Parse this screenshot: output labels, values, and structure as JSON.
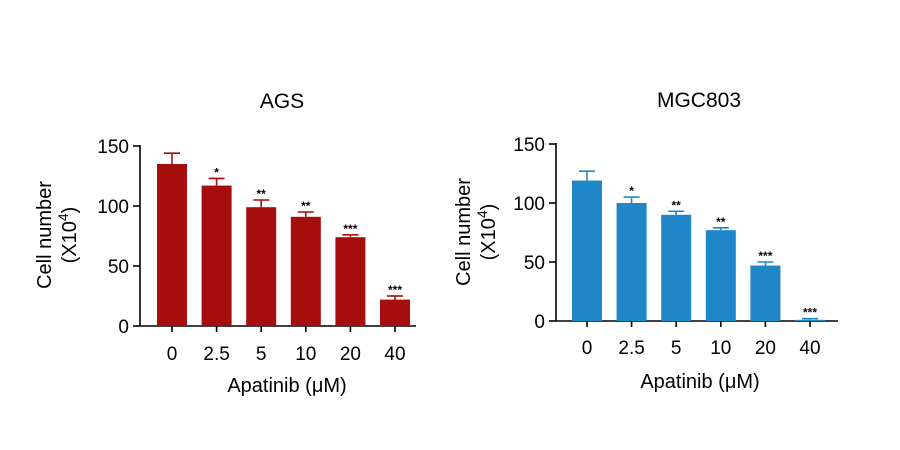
{
  "chart_data": [
    {
      "type": "bar",
      "title": "AGS",
      "xlabel": "Apatinib (μM)",
      "ylabel_line1": "Cell number",
      "ylabel_line2_prefix": "(X10",
      "ylabel_line2_sup": "4",
      "ylabel_line2_suffix": ")",
      "categories": [
        "0",
        "2.5",
        "5",
        "10",
        "20",
        "40"
      ],
      "values": [
        135,
        117,
        99,
        91,
        74,
        22
      ],
      "errors": [
        9,
        6,
        6,
        4,
        2,
        3
      ],
      "significance": [
        "",
        "*",
        "**",
        "**",
        "***",
        "***"
      ],
      "ylim": [
        0,
        150
      ],
      "yticks": [
        "0",
        "50",
        "100",
        "150"
      ],
      "color": "#a60d0d"
    },
    {
      "type": "bar",
      "title": "MGC803",
      "xlabel": "Apatinib (μM)",
      "ylabel_line1": "Cell number",
      "ylabel_line2_prefix": "(X10",
      "ylabel_line2_sup": "4",
      "ylabel_line2_suffix": ")",
      "categories": [
        "0",
        "2.5",
        "5",
        "10",
        "20",
        "40"
      ],
      "values": [
        119,
        100,
        90,
        77,
        47,
        1
      ],
      "errors": [
        8,
        5,
        3,
        2,
        3,
        1
      ],
      "significance": [
        "",
        "*",
        "**",
        "**",
        "***",
        "***"
      ],
      "ylim": [
        0,
        150
      ],
      "yticks": [
        "0",
        "50",
        "100",
        "150"
      ],
      "color": "#1f87c8"
    }
  ]
}
